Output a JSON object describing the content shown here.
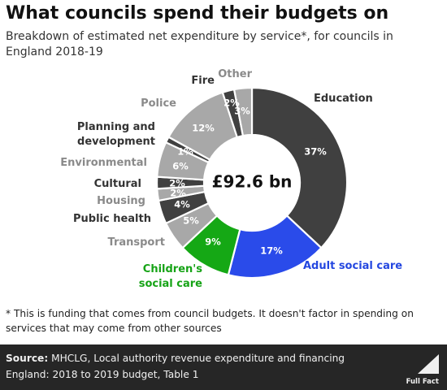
{
  "header": {
    "title": "What councils spend their budgets on",
    "subtitle": "Breakdown of estimated net expenditure by service*, for councils in England 2018-19"
  },
  "chart_data": {
    "type": "pie",
    "style": "donut",
    "center_label": "£92.6 bn",
    "series": [
      {
        "name": "Education",
        "value": 37,
        "label": "37%",
        "color": "#404040",
        "label_color": "#333333"
      },
      {
        "name": "Adult social care",
        "value": 17,
        "label": "17%",
        "color": "#2a4bea",
        "label_color": "#2447e0"
      },
      {
        "name": "Children's social care",
        "value": 9,
        "label": "9%",
        "color": "#15a815",
        "label_color": "#16a316"
      },
      {
        "name": "Transport",
        "value": 5,
        "label": "5%",
        "color": "#a8a8a8",
        "label_color": "#8a8a8a"
      },
      {
        "name": "Public health",
        "value": 4,
        "label": "4%",
        "color": "#404040",
        "label_color": "#333333"
      },
      {
        "name": "Housing",
        "value": 2,
        "label": "2%",
        "color": "#a8a8a8",
        "label_color": "#8a8a8a"
      },
      {
        "name": "Cultural",
        "value": 2,
        "label": "2%",
        "color": "#404040",
        "label_color": "#333333"
      },
      {
        "name": "Environmental",
        "value": 6,
        "label": "6%",
        "color": "#a8a8a8",
        "label_color": "#8a8a8a"
      },
      {
        "name": "Planning and development",
        "value": 1,
        "label": "1%",
        "color": "#404040",
        "label_color": "#333333"
      },
      {
        "name": "Police",
        "value": 12,
        "label": "12%",
        "color": "#a8a8a8",
        "label_color": "#8a8a8a"
      },
      {
        "name": "Fire",
        "value": 2,
        "label": "2%",
        "color": "#404040",
        "label_color": "#333333"
      },
      {
        "name": "Other",
        "value": 3,
        "label": "3%",
        "color": "#a8a8a8",
        "label_color": "#8a8a8a"
      }
    ]
  },
  "footnote": "* This is funding that comes from council budgets. It doesn't factor in spending on services that may come from other sources",
  "footer": {
    "source_label": "Source:",
    "source_text": " MHCLG, Local authority revenue expenditure and financing England: 2018 to 2019 budget, Table 1",
    "brand": "Full Fact"
  },
  "colors": {
    "background": "#ffffff",
    "footer_background": "#262626",
    "dark_segment": "#404040",
    "light_segment": "#a8a8a8",
    "adult_social_care": "#2a4bea",
    "childrens_social_care": "#15a815"
  }
}
